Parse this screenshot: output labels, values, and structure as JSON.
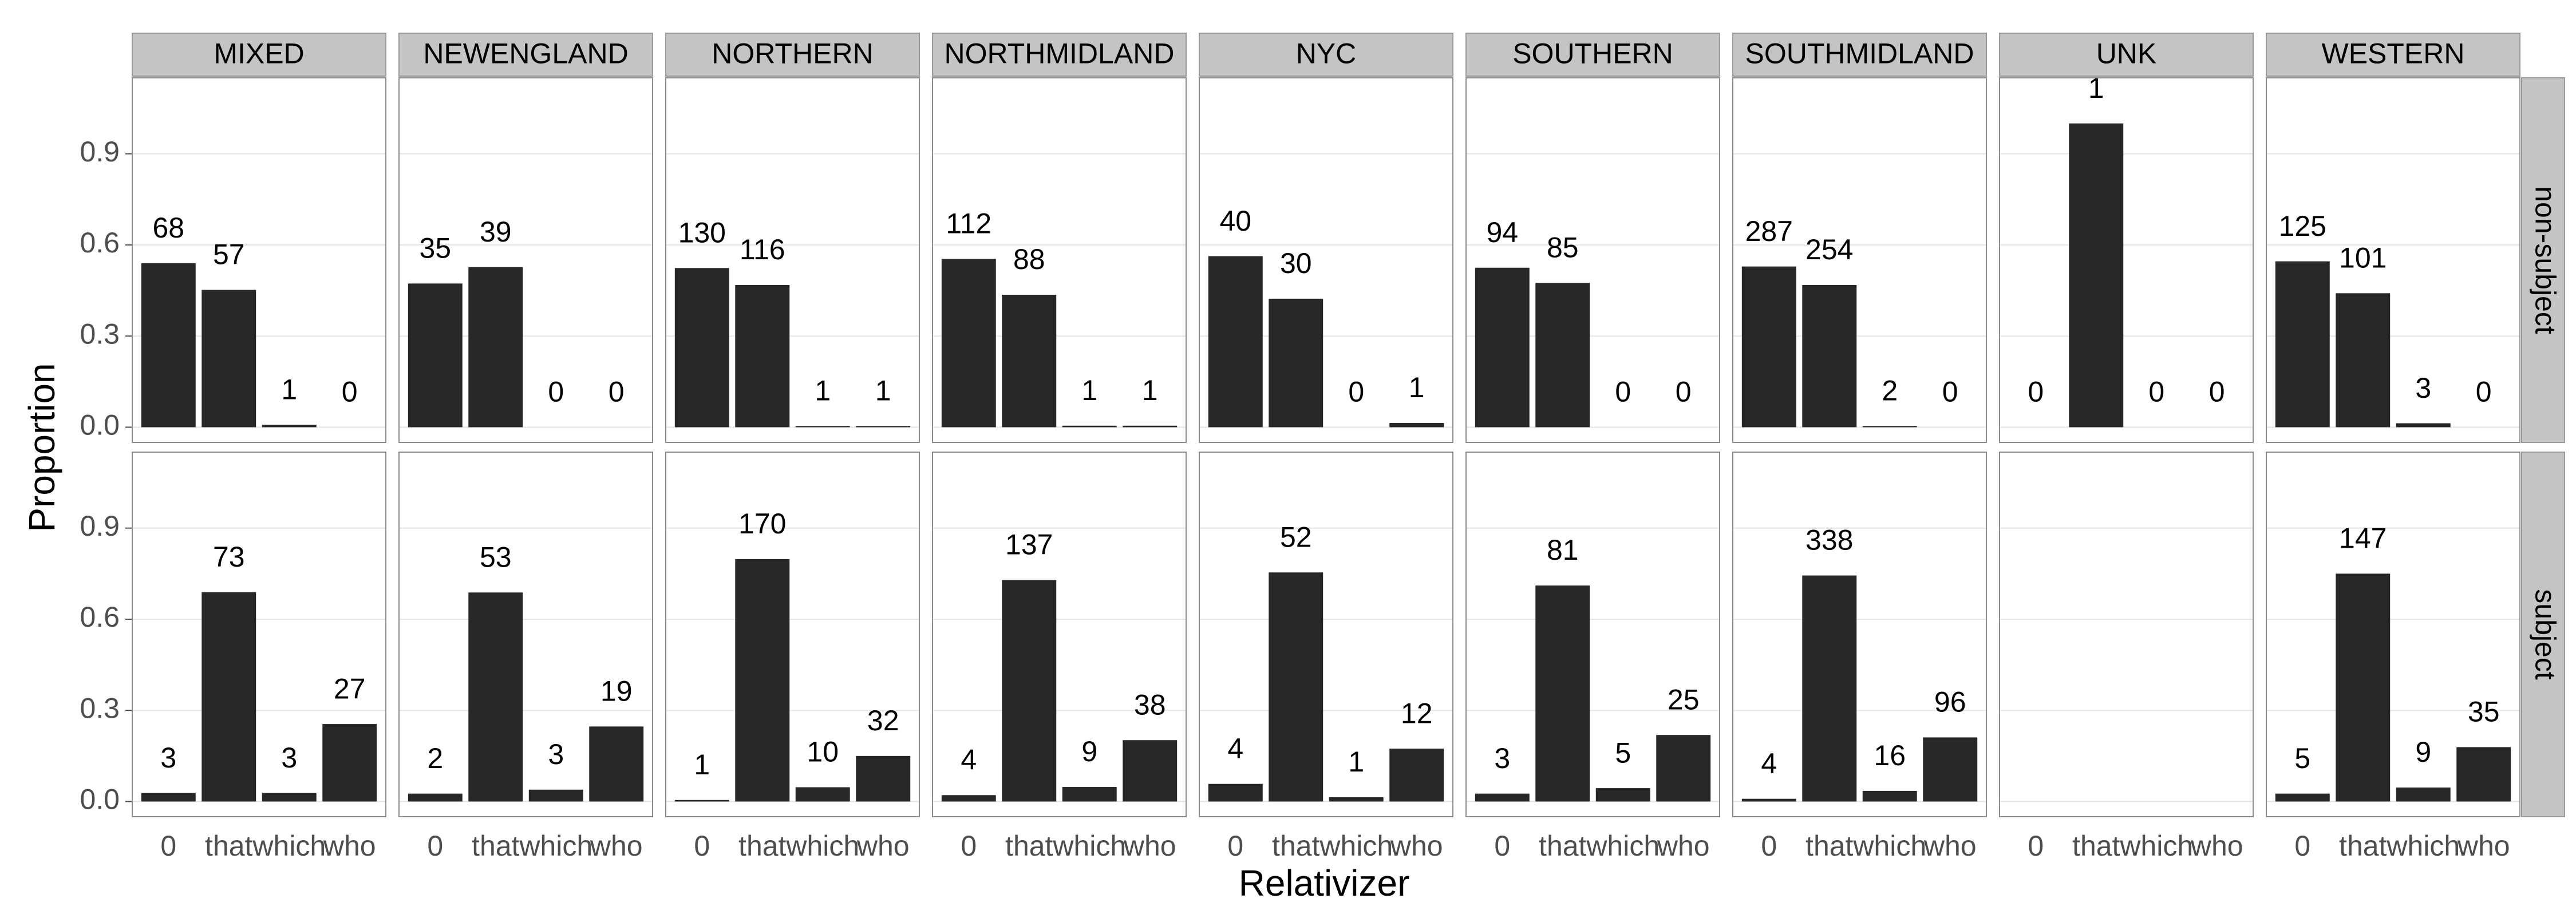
{
  "chart_data": {
    "type": "bar",
    "x_label": "Relativizer",
    "y_label": "Proportion",
    "columns": [
      "MIXED",
      "NEWENGLAND",
      "NORTHERN",
      "NORTHMIDLAND",
      "NYC",
      "SOUTHERN",
      "SOUTHMIDLAND",
      "UNK",
      "WESTERN"
    ],
    "rows": [
      "non-subject",
      "subject"
    ],
    "categories": [
      "0",
      "that",
      "which",
      "who"
    ],
    "color": "#272727",
    "ylim": [
      -0.05,
      1.15
    ],
    "yticks": [
      {
        "value": 0,
        "label": "0.0"
      },
      0.3,
      0.6,
      0.9
    ],
    "grid": true,
    "values": [
      [
        [
          0.54,
          0.452,
          0.008,
          0
        ],
        [
          0.473,
          0.527,
          0,
          0
        ],
        [
          0.524,
          0.468,
          0.004,
          0.004
        ],
        [
          0.554,
          0.436,
          0.005,
          0.005
        ],
        [
          0.563,
          0.423,
          0,
          0.014
        ],
        [
          0.525,
          0.475,
          0,
          0
        ],
        [
          0.529,
          0.468,
          0.004,
          0
        ],
        [
          0,
          1,
          0,
          0
        ],
        [
          0.546,
          0.441,
          0.013,
          0
        ]
      ],
      [
        [
          0.028,
          0.689,
          0.028,
          0.255
        ],
        [
          0.026,
          0.688,
          0.039,
          0.247
        ],
        [
          0.005,
          0.798,
          0.047,
          0.15
        ],
        [
          0.021,
          0.729,
          0.048,
          0.202
        ],
        [
          0.058,
          0.754,
          0.014,
          0.174
        ],
        [
          0.026,
          0.711,
          0.044,
          0.219
        ],
        [
          0.009,
          0.744,
          0.035,
          0.211
        ],
        [
          null,
          null,
          null,
          null
        ],
        [
          0.026,
          0.75,
          0.046,
          0.179
        ]
      ]
    ],
    "counts": [
      [
        [
          68,
          57,
          1,
          0
        ],
        [
          35,
          39,
          0,
          0
        ],
        [
          130,
          116,
          1,
          1
        ],
        [
          112,
          88,
          1,
          1
        ],
        [
          40,
          30,
          0,
          1
        ],
        [
          94,
          85,
          0,
          0
        ],
        [
          287,
          254,
          2,
          0
        ],
        [
          0,
          1,
          0,
          0
        ],
        [
          125,
          101,
          3,
          0
        ]
      ],
      [
        [
          3,
          73,
          3,
          27
        ],
        [
          2,
          53,
          3,
          19
        ],
        [
          1,
          170,
          10,
          32
        ],
        [
          4,
          137,
          9,
          38
        ],
        [
          4,
          52,
          1,
          12
        ],
        [
          3,
          81,
          5,
          25
        ],
        [
          4,
          338,
          16,
          96
        ],
        [
          null,
          null,
          null,
          null
        ],
        [
          5,
          147,
          9,
          35
        ]
      ]
    ]
  }
}
